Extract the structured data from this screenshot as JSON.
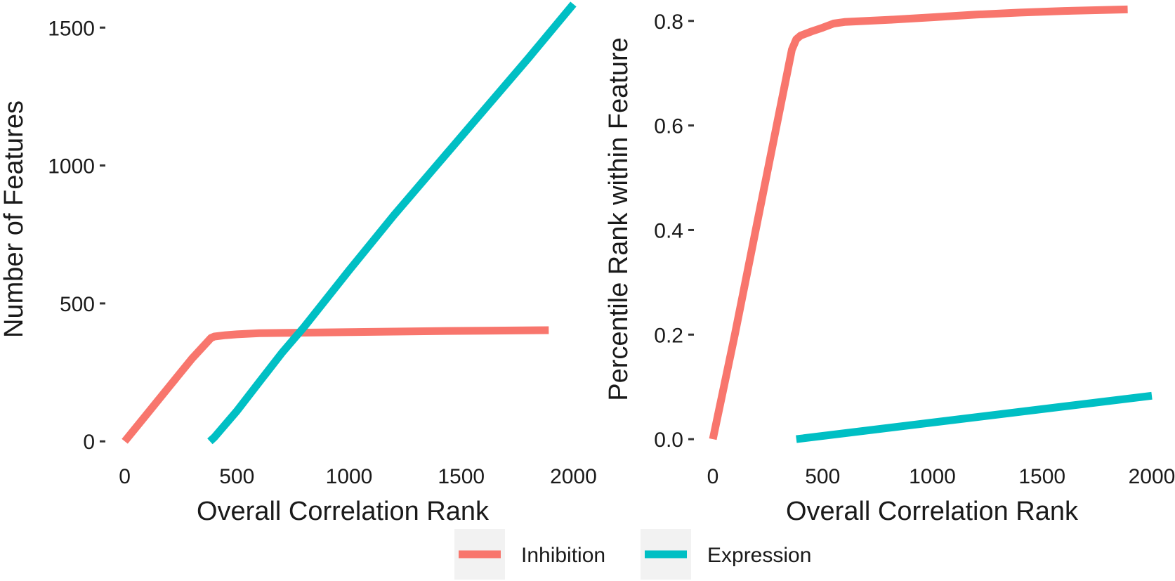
{
  "legend": {
    "items": [
      {
        "label": "Inhibition",
        "color": "#F8766D"
      },
      {
        "label": "Expression",
        "color": "#00BFC4"
      }
    ]
  },
  "chart_data": [
    {
      "type": "line",
      "title": "",
      "xlabel": "Overall Correlation Rank",
      "ylabel": "Number of Features",
      "xlim": [
        -80,
        2080
      ],
      "ylim": [
        -30,
        1600
      ],
      "xticks": [
        0,
        500,
        1000,
        1500,
        2000
      ],
      "yticks": [
        0,
        500,
        1000,
        1500
      ],
      "grid": false,
      "series": [
        {
          "name": "Inhibition",
          "color": "#F8766D",
          "x": [
            0,
            100,
            200,
            300,
            385,
            400,
            450,
            500,
            600,
            800,
            1000,
            1200,
            1400,
            1600,
            1890
          ],
          "y": [
            0,
            100,
            200,
            300,
            375,
            380,
            385,
            388,
            392,
            394,
            396,
            398,
            400,
            401,
            403
          ]
        },
        {
          "name": "Expression",
          "color": "#00BFC4",
          "x": [
            380,
            400,
            500,
            600,
            700,
            800,
            1000,
            1200,
            1400,
            1600,
            1800,
            2000
          ],
          "y": [
            0,
            15,
            110,
            215,
            320,
            415,
            620,
            820,
            1010,
            1200,
            1390,
            1585
          ]
        }
      ]
    },
    {
      "type": "line",
      "title": "",
      "xlabel": "Overall Correlation Rank",
      "ylabel": "Percentile Rank within Feature",
      "xlim": [
        -80,
        2080
      ],
      "ylim": [
        -0.02,
        0.84
      ],
      "xticks": [
        0,
        500,
        1000,
        1500,
        2000
      ],
      "yticks": [
        0.0,
        0.2,
        0.4,
        0.6,
        0.8
      ],
      "grid": false,
      "series": [
        {
          "name": "Inhibition",
          "color": "#F8766D",
          "x": [
            0,
            100,
            200,
            300,
            360,
            380,
            400,
            450,
            500,
            550,
            600,
            800,
            1000,
            1200,
            1400,
            1600,
            1890
          ],
          "y": [
            0.0,
            0.2,
            0.41,
            0.62,
            0.745,
            0.765,
            0.772,
            0.78,
            0.787,
            0.795,
            0.798,
            0.802,
            0.807,
            0.812,
            0.816,
            0.819,
            0.822
          ]
        },
        {
          "name": "Expression",
          "color": "#00BFC4",
          "x": [
            380,
            2000
          ],
          "y": [
            0.0,
            0.083
          ]
        }
      ]
    }
  ]
}
